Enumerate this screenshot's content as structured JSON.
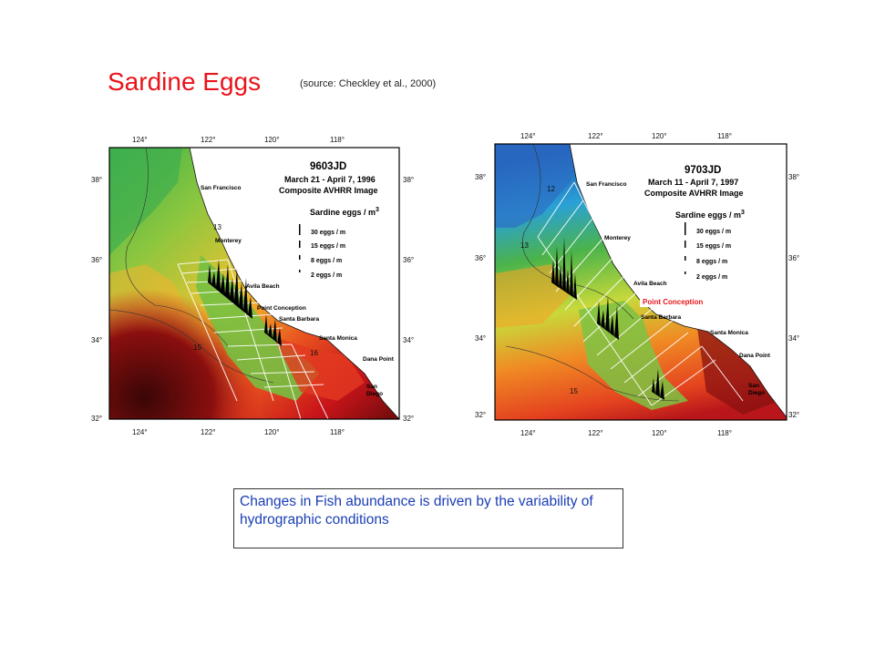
{
  "title": "Sardine Eggs",
  "source": "(source: Checkley et al., 2000)",
  "maps": [
    {
      "id": "9603JD",
      "date": "March 21 - April 7, 1996",
      "subtitle": "Composite AVHRR Image",
      "legend_title": "Sardine eggs / m",
      "legend_sup": "3",
      "legend_items": [
        "30 eggs / m",
        "15 eggs / m",
        "8 eggs / m",
        "2 eggs / m"
      ],
      "top_lon": [
        "124°",
        "122°",
        "120°",
        "118°"
      ],
      "bottom_lon": [
        "124°",
        "122°",
        "120°",
        "118°"
      ],
      "lat": [
        "38°",
        "36°",
        "34°",
        "32°"
      ],
      "places": [
        "San Francisco",
        "Monterey",
        "Avila Beach",
        "Point Conception",
        "Santa Barbara",
        "Santa Monica",
        "Dana Point",
        "San",
        "Diego"
      ],
      "isotherm_labels": [
        "13",
        "15",
        "16"
      ]
    },
    {
      "id": "9703JD",
      "date": "March 11 - April 7, 1997",
      "subtitle": "Composite AVHRR Image",
      "legend_title": "Sardine eggs / m",
      "legend_sup": "3",
      "legend_items": [
        "30 eggs / m",
        "15 eggs / m",
        "8 eggs / m",
        "2 eggs / m"
      ],
      "top_lon": [
        "124°",
        "122°",
        "120°",
        "118°"
      ],
      "bottom_lon": [
        "124°",
        "122°",
        "120°",
        "118°"
      ],
      "lat": [
        "38°",
        "36°",
        "34°",
        "32°"
      ],
      "places": [
        "San Francisco",
        "Monterey",
        "Avila Beach",
        "Santa Barbara",
        "Santa Monica",
        "Dana Point",
        "San",
        "Diego"
      ],
      "highlight_label": "Point Conception",
      "isotherm_labels": [
        "12",
        "13",
        "15"
      ]
    }
  ],
  "note": "Changes in Fish abundance is driven by the variability of hydrographic conditions",
  "colors": {
    "title": "#e8141b",
    "note_text": "#1a3eb5",
    "highlight": "#e8141b"
  }
}
